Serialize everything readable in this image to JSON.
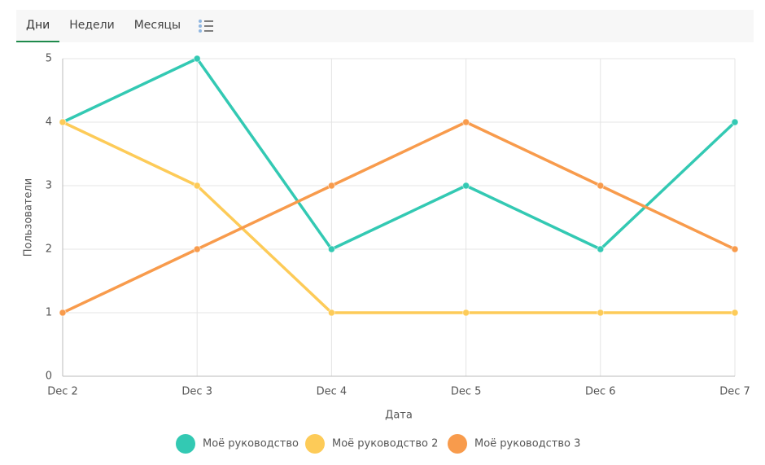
{
  "tabs": [
    "Дни",
    "Недели",
    "Месяцы"
  ],
  "chart_data": {
    "type": "line",
    "xlabel": "Дата",
    "ylabel": "Пользователи",
    "categories": [
      "Dec 2",
      "Dec 3",
      "Dec 4",
      "Dec 5",
      "Dec 6",
      "Dec 7"
    ],
    "series": [
      {
        "name": "Моё руководство",
        "color": "#33c9b3",
        "values": [
          4,
          5,
          2,
          3,
          2,
          4
        ]
      },
      {
        "name": "Моё руководство 2",
        "color": "#fdcb58",
        "values": [
          4,
          3,
          1,
          1,
          1,
          1
        ]
      },
      {
        "name": "Моё руководство 3",
        "color": "#f89b4c",
        "values": [
          1,
          2,
          3,
          4,
          3,
          2
        ]
      }
    ],
    "ylim": [
      0,
      5
    ],
    "yticks": [
      0,
      1,
      2,
      3,
      4,
      5
    ],
    "grid": true,
    "legend": "bottom"
  }
}
